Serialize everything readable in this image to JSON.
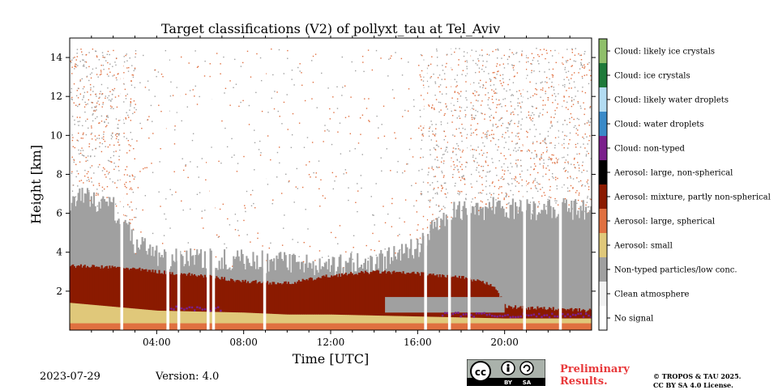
{
  "chart_data": {
    "type": "heatmap",
    "title": "Target classifications (V2) of pollyxt_tau at Tel_Aviv",
    "xlabel": "Time [UTC]",
    "ylabel": "Height [km]",
    "xlim": [
      0,
      24
    ],
    "ylim": [
      0,
      15
    ],
    "x_ticks": [
      4,
      8,
      12,
      16,
      20
    ],
    "x_tick_labels": [
      "04:00",
      "08:00",
      "12:00",
      "16:00",
      "20:00"
    ],
    "y_ticks": [
      2,
      4,
      6,
      8,
      10,
      12,
      14
    ],
    "y_tick_labels": [
      "2",
      "4",
      "6",
      "8",
      "10",
      "12",
      "14"
    ],
    "grid": false,
    "legend_placement": "right colorbar",
    "classes": [
      {
        "label": "No signal",
        "color": "#ffffff"
      },
      {
        "label": "Clean atmosphere",
        "color": "#f2f2f2"
      },
      {
        "label": "Non-typed particles/low conc.",
        "color": "#a0a0a0"
      },
      {
        "label": "Aerosol: small",
        "color": "#e0c87a"
      },
      {
        "label": "Aerosol: large, spherical",
        "color": "#e07040"
      },
      {
        "label": "Aerosol: mixture, partly non-spherical",
        "color": "#8b1a00"
      },
      {
        "label": "Aerosol: large, non-spherical",
        "color": "#000000"
      },
      {
        "label": "Cloud: non-typed",
        "color": "#7b1f8c"
      },
      {
        "label": "Cloud: water droplets",
        "color": "#3a8ac8"
      },
      {
        "label": "Cloud: likely water droplets",
        "color": "#b3dcf2"
      },
      {
        "label": "Cloud: ice crystals",
        "color": "#1e7a3a"
      },
      {
        "label": "Cloud: likely ice crystals",
        "color": "#8fbf6a"
      }
    ],
    "layers": {
      "surface_large_spherical_top_km": 0.35,
      "small_aerosol_top_km": [
        [
          0,
          1.4
        ],
        [
          4,
          1.0
        ],
        [
          8,
          0.9
        ],
        [
          10,
          0.8
        ],
        [
          12,
          0.8
        ],
        [
          16,
          0.7
        ],
        [
          20,
          0.6
        ],
        [
          24,
          0.6
        ]
      ],
      "mixture_top_km": [
        [
          0,
          3.3
        ],
        [
          2.5,
          3.2
        ],
        [
          4,
          3.0
        ],
        [
          6,
          2.8
        ],
        [
          8,
          2.5
        ],
        [
          10,
          2.4
        ],
        [
          12,
          2.8
        ],
        [
          14,
          3.0
        ],
        [
          16,
          2.9
        ],
        [
          18,
          2.7
        ],
        [
          19.5,
          2.3
        ],
        [
          20,
          1.2
        ],
        [
          24,
          1.0
        ]
      ],
      "nontyped_top_km": [
        [
          0,
          6.5
        ],
        [
          1,
          6.5
        ],
        [
          2,
          6.0
        ],
        [
          3,
          4.2
        ],
        [
          4,
          3.5
        ],
        [
          8,
          3.3
        ],
        [
          12,
          3.1
        ],
        [
          14,
          3.2
        ],
        [
          16,
          4.0
        ],
        [
          17,
          5.5
        ],
        [
          18,
          6.0
        ],
        [
          20,
          6.0
        ],
        [
          22,
          6.0
        ],
        [
          24,
          6.0
        ]
      ]
    },
    "no_signal_gaps_utc": [
      2.33,
      4.45,
      4.95,
      6.3,
      6.55,
      8.9,
      16.3,
      17.4,
      18.3,
      20.85,
      22.5
    ],
    "date": "2023-07-29",
    "version": "Version: 4.0"
  },
  "footer": {
    "date": "2023-07-29",
    "version": "Version: 4.0",
    "preliminary_line1": "Preliminary",
    "preliminary_line2": "Results.",
    "copyright_line1": "© TROPOS & TAU 2025.",
    "copyright_line2": "CC BY SA 4.0 License.",
    "cc_badge_text": [
      "cc",
      "BY",
      "SA"
    ]
  }
}
